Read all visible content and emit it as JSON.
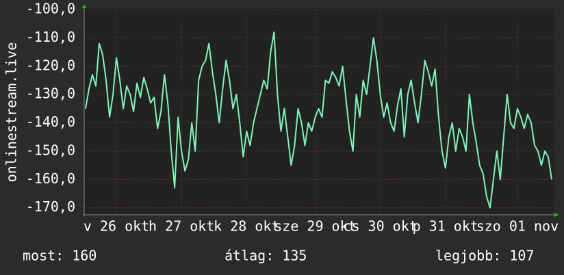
{
  "chart_data": {
    "type": "line",
    "y_label": "onlinestream.live",
    "color": "#80f5b8",
    "grid": true,
    "ylim": [
      -172.5,
      -100
    ],
    "yticks": [
      {
        "value": -100,
        "label": "-100,0"
      },
      {
        "value": -110,
        "label": "-110,0"
      },
      {
        "value": -120,
        "label": "-120,0"
      },
      {
        "value": -130,
        "label": "-130,0"
      },
      {
        "value": -140,
        "label": "-140,0"
      },
      {
        "value": -150,
        "label": "-150,0"
      },
      {
        "value": -160,
        "label": "-160,0"
      },
      {
        "value": -170,
        "label": "-170,0"
      }
    ],
    "xlim": [
      -0.4,
      136.6
    ],
    "xticks": [
      {
        "value": 9,
        "label": "v 26 okt"
      },
      {
        "value": 28,
        "label": "h 27 okt"
      },
      {
        "value": 47,
        "label": "k 28 okt"
      },
      {
        "value": 67,
        "label": "sze 29 okt"
      },
      {
        "value": 86,
        "label": "cs 30 okt"
      },
      {
        "value": 105,
        "label": "p 31 okt"
      },
      {
        "value": 126,
        "label": "szo 01 nov"
      }
    ],
    "values": [
      -135,
      -128,
      -123,
      -127,
      -112,
      -116,
      -125,
      -138,
      -130,
      -117,
      -125,
      -135,
      -127,
      -130,
      -136,
      -126,
      -131,
      -124,
      -128,
      -133,
      -131,
      -142,
      -136,
      -123,
      -133,
      -150,
      -163,
      -138,
      -150,
      -157,
      -153,
      -140,
      -150,
      -125,
      -120,
      -118,
      -112,
      -122,
      -130,
      -140,
      -128,
      -118,
      -125,
      -135,
      -130,
      -140,
      -152,
      -143,
      -148,
      -140,
      -135,
      -130,
      -125,
      -128,
      -115,
      -108,
      -130,
      -143,
      -135,
      -145,
      -155,
      -148,
      -135,
      -140,
      -148,
      -140,
      -143,
      -138,
      -135,
      -138,
      -125,
      -126,
      -122,
      -124,
      -127,
      -120,
      -132,
      -143,
      -150,
      -130,
      -138,
      -125,
      -130,
      -120,
      -110,
      -118,
      -130,
      -138,
      -133,
      -140,
      -143,
      -134,
      -128,
      -145,
      -130,
      -125,
      -133,
      -140,
      -130,
      -118,
      -122,
      -127,
      -121,
      -138,
      -150,
      -156,
      -145,
      -140,
      -150,
      -142,
      -145,
      -150,
      -130,
      -140,
      -147,
      -155,
      -158,
      -166,
      -170,
      -160,
      -150,
      -160,
      -145,
      -130,
      -140,
      -142,
      -135,
      -138,
      -142,
      -137,
      -140,
      -148,
      -150,
      -155,
      -150,
      -152,
      -160
    ],
    "stats": [
      "most: 160",
      "átlag: 135",
      "legjobb: 107"
    ]
  }
}
